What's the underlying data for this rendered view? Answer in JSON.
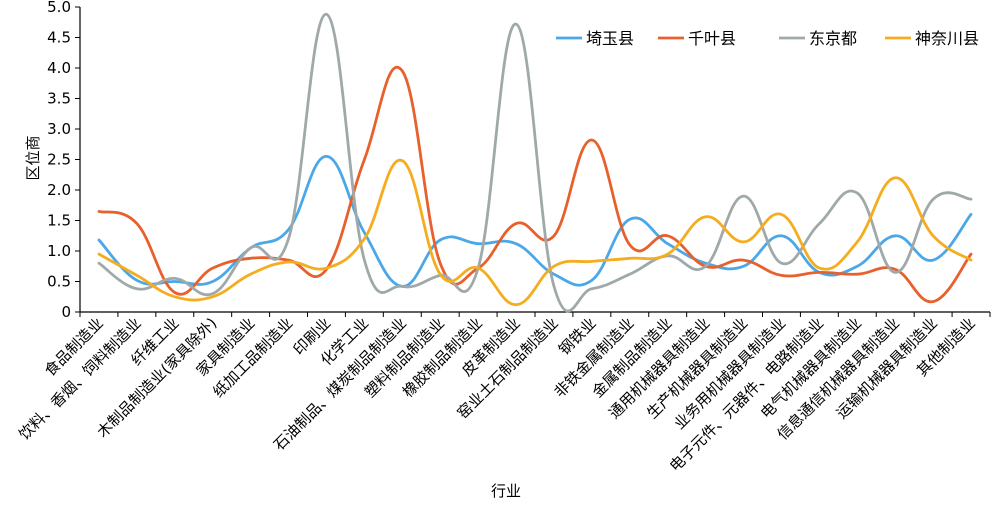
{
  "chart_data": {
    "type": "line",
    "title": "",
    "xlabel": "行业",
    "ylabel": "区位商",
    "ylim": [
      0,
      5.0
    ],
    "yticks": [
      "0",
      "0.5",
      "1.0",
      "1.5",
      "2.0",
      "2.5",
      "3.0",
      "3.5",
      "4.0",
      "4.5",
      "5.0"
    ],
    "grid": false,
    "legend_position": "top-right",
    "categories": [
      "食品制造业",
      "饮料、香烟、饲料制造业",
      "纤维工业",
      "木制品制造业(家具除外)",
      "家具制造业",
      "纸加工品制造业",
      "印刷业",
      "化学工业",
      "石油制品、煤炭制品制造业",
      "塑料制品制造业",
      "橡胶制品制造业",
      "皮革制造业",
      "窑业土石制品制造业",
      "钢铁业",
      "非铁金属制造业",
      "金属制品制造业",
      "通用机械器具制造业",
      "生产机械器具制造业",
      "业务用机械器具制造业",
      "电子元件、元器件、电路制造业",
      "电气机械器具制造业",
      "信息通信机械器具制造业",
      "运输机械器具制造业",
      "其他制造业"
    ],
    "series": [
      {
        "name": "埼玉县",
        "color": "#4aa8e8",
        "values": [
          1.18,
          0.52,
          0.5,
          0.5,
          1.05,
          1.35,
          2.55,
          1.3,
          0.42,
          1.18,
          1.12,
          1.12,
          0.62,
          0.52,
          1.52,
          1.12,
          0.8,
          0.75,
          1.25,
          0.65,
          0.75,
          1.25,
          0.85,
          1.6
        ]
      },
      {
        "name": "千叶县",
        "color": "#e8602c",
        "values": [
          1.65,
          1.45,
          0.32,
          0.72,
          0.88,
          0.85,
          0.7,
          2.5,
          3.95,
          0.8,
          0.72,
          1.45,
          1.25,
          2.82,
          1.1,
          1.25,
          0.75,
          0.85,
          0.6,
          0.65,
          0.62,
          0.7,
          0.17,
          0.95
        ]
      },
      {
        "name": "东京都",
        "color": "#a0a9aa",
        "values": [
          0.8,
          0.38,
          0.55,
          0.3,
          1.05,
          1.2,
          4.88,
          0.85,
          0.42,
          0.6,
          0.72,
          4.72,
          0.42,
          0.38,
          0.62,
          0.92,
          0.75,
          1.9,
          0.8,
          1.45,
          1.95,
          0.65,
          1.85,
          1.85
        ]
      },
      {
        "name": "神奈川县",
        "color": "#f5ac1e",
        "values": [
          0.95,
          0.6,
          0.25,
          0.25,
          0.62,
          0.82,
          0.72,
          1.2,
          2.48,
          0.62,
          0.72,
          0.12,
          0.75,
          0.83,
          0.88,
          0.95,
          1.56,
          1.15,
          1.6,
          0.72,
          1.15,
          2.2,
          1.25,
          0.85
        ]
      }
    ]
  }
}
